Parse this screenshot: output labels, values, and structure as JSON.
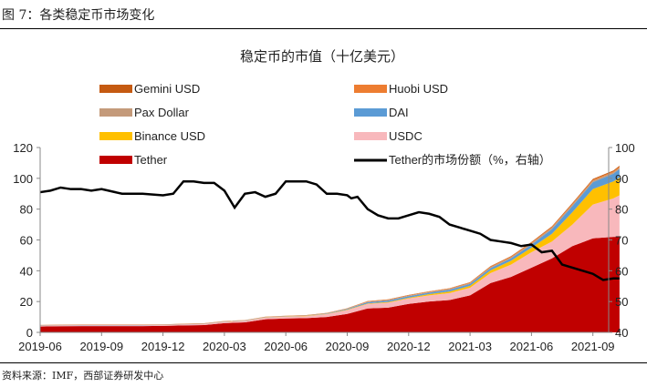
{
  "figure_title": "图 7：各类稳定币市场变化",
  "source": "资料来源：IMF，西部证券研发中心",
  "chart_data": {
    "type": "area",
    "title": "稳定币的市值（十亿美元）",
    "x_unit": "months since 2019-06",
    "x": [
      0,
      1,
      2,
      3,
      4,
      5,
      6,
      7,
      8,
      9,
      10,
      11,
      12,
      13,
      14,
      15,
      16,
      17,
      18,
      19,
      20,
      21,
      22,
      23,
      24,
      25,
      26,
      27,
      28,
      28.3
    ],
    "x_tick_labels": [
      "2019-06",
      "2019-09",
      "2019-12",
      "2020-03",
      "2020-06",
      "2020-09",
      "2020-12",
      "2021-03",
      "2021-06",
      "2021-09"
    ],
    "ylim_left": [
      0,
      120
    ],
    "y_ticks_left": [
      "0",
      "20",
      "40",
      "60",
      "80",
      "100",
      "120"
    ],
    "ylim_right": [
      40,
      100
    ],
    "y_ticks_right": [
      "40",
      "50",
      "60",
      "70",
      "80",
      "90",
      "100"
    ],
    "legend": "top, two columns",
    "series": [
      {
        "name": "Tether",
        "color": "#C00000",
        "values": [
          3.8,
          4,
          4.1,
          4.1,
          4.1,
          4.1,
          4.2,
          4.5,
          4.7,
          6,
          6.5,
          8.5,
          9,
          9.2,
          10,
          12,
          15.5,
          16,
          18.5,
          20,
          21,
          24,
          32,
          36,
          42,
          48,
          56,
          61,
          62,
          62
        ]
      },
      {
        "name": "USDC",
        "color": "#F8B8BC",
        "values": [
          0.5,
          0.5,
          0.5,
          0.5,
          0.5,
          0.5,
          0.5,
          0.6,
          0.7,
          0.8,
          0.9,
          1,
          1.1,
          1.3,
          1.8,
          2.5,
          3,
          3.3,
          3.5,
          4,
          4.5,
          5,
          6.5,
          8,
          10,
          11,
          14,
          22,
          25,
          27
        ]
      },
      {
        "name": "Binance USD",
        "color": "#FFC000",
        "values": [
          0,
          0,
          0,
          0,
          0,
          0,
          0,
          0,
          0,
          0.1,
          0.1,
          0.2,
          0.2,
          0.2,
          0.2,
          0.3,
          0.3,
          0.4,
          0.5,
          0.8,
          1,
          1.2,
          1.8,
          2.5,
          3,
          5,
          8,
          10,
          11,
          11.5
        ]
      },
      {
        "name": "DAI",
        "color": "#5B9BD5",
        "values": [
          0.1,
          0.1,
          0.1,
          0.1,
          0.1,
          0.1,
          0.1,
          0.1,
          0.1,
          0.1,
          0.1,
          0.1,
          0.1,
          0.1,
          0.2,
          0.4,
          0.8,
          1,
          1,
          1,
          1.2,
          1.3,
          1.4,
          1.5,
          2,
          3,
          4,
          4.5,
          5,
          5.5
        ]
      },
      {
        "name": "Pax Dollar",
        "color": "#C49A7A",
        "values": [
          0.2,
          0.2,
          0.2,
          0.2,
          0.2,
          0.2,
          0.2,
          0.2,
          0.2,
          0.2,
          0.2,
          0.2,
          0.2,
          0.2,
          0.2,
          0.2,
          0.3,
          0.3,
          0.3,
          0.4,
          0.5,
          0.5,
          0.6,
          0.7,
          0.8,
          0.9,
          0.9,
          0.9,
          0.9,
          0.9
        ]
      },
      {
        "name": "Huobi USD",
        "color": "#ED7D31",
        "values": [
          0.1,
          0.1,
          0.1,
          0.1,
          0.1,
          0.1,
          0.1,
          0.1,
          0.1,
          0.1,
          0.1,
          0.1,
          0.1,
          0.1,
          0.1,
          0.2,
          0.2,
          0.2,
          0.3,
          0.3,
          0.3,
          0.4,
          0.4,
          0.5,
          0.5,
          0.5,
          0.6,
          0.6,
          0.6,
          0.6
        ]
      },
      {
        "name": "Gemini USD",
        "color": "#C55A11",
        "values": [
          0.1,
          0.1,
          0.1,
          0.1,
          0.1,
          0.1,
          0.1,
          0.1,
          0.1,
          0.1,
          0.1,
          0.1,
          0.1,
          0.1,
          0.1,
          0.1,
          0.2,
          0.2,
          0.2,
          0.2,
          0.2,
          0.2,
          0.3,
          0.3,
          0.4,
          0.5,
          0.5,
          0.6,
          0.6,
          0.7
        ]
      }
    ],
    "line_series": {
      "name": "Tether的市场份额（%，右轴）",
      "color": "#000000",
      "axis": "right",
      "x": [
        0,
        0.5,
        1,
        1.5,
        2,
        2.5,
        3,
        4,
        5,
        6,
        6.5,
        7,
        7.5,
        8,
        8.5,
        9,
        9.5,
        10,
        10.5,
        11,
        11.5,
        12,
        12.5,
        13,
        13.5,
        14,
        14.5,
        15,
        15.2,
        15.5,
        16,
        16.5,
        17,
        17.5,
        18,
        18.5,
        19,
        19.5,
        20,
        20.5,
        21,
        21.5,
        22,
        22.5,
        23,
        23.5,
        24,
        24.5,
        25,
        25.5,
        26,
        26.5,
        27,
        27.5,
        28,
        28.3
      ],
      "values": [
        85.5,
        86,
        87,
        86.5,
        86.5,
        86,
        86.5,
        85,
        85,
        84.5,
        85,
        89,
        89,
        88.5,
        88.5,
        86,
        80.5,
        85,
        85.5,
        84,
        85,
        89,
        89,
        89,
        88,
        85,
        85,
        84.5,
        83.5,
        84,
        80,
        78,
        77,
        77,
        78,
        79,
        78.5,
        77.5,
        75,
        74,
        73,
        72,
        70,
        69.5,
        69,
        68,
        68.5,
        66,
        66.5,
        62,
        61,
        60,
        59,
        57,
        57.5,
        57.5
      ]
    }
  }
}
